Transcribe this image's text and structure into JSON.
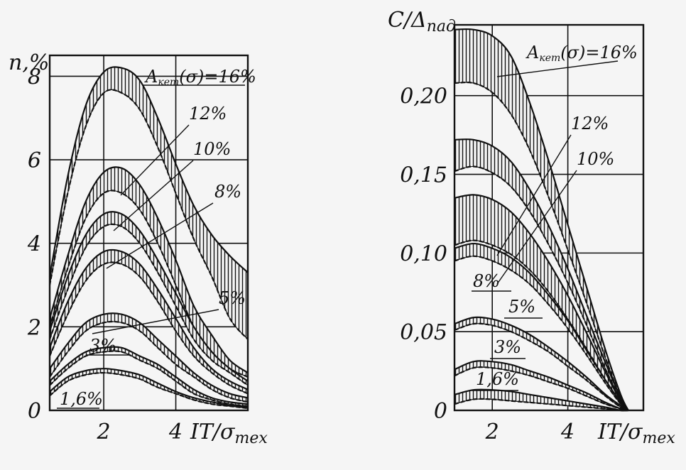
{
  "chart_data": [
    {
      "type": "area",
      "title": "",
      "ylabel": "n,%",
      "xlabel": "IT/σ_тех",
      "xlabel_main": "IT/σ",
      "xlabel_sub": "тех",
      "xlim": [
        0.5,
        6
      ],
      "ylim": [
        0,
        8.5
      ],
      "x_ticks": [
        2,
        4
      ],
      "y_ticks": [
        0,
        2,
        4,
        6,
        8
      ],
      "x_tick_labels": [
        "2",
        "4"
      ],
      "y_tick_labels": [
        "0",
        "2",
        "4",
        "6",
        "8"
      ],
      "grid": true,
      "legend_title_main": "A",
      "legend_title_sub": "кет",
      "legend_title_rest": "(σ)=16%",
      "series": [
        {
          "name": "16%",
          "x": [
            0.5,
            1,
            1.5,
            2,
            2.5,
            3,
            3.5,
            4,
            4.5,
            5,
            5.5,
            6
          ],
          "upper": [
            3.2,
            5.6,
            7.3,
            8.1,
            8.2,
            7.9,
            7.0,
            5.9,
            4.9,
            4.2,
            3.7,
            3.3
          ],
          "lower": [
            3.0,
            5.2,
            6.8,
            7.6,
            7.6,
            7.2,
            6.3,
            5.2,
            4.1,
            3.2,
            2.2,
            1.7
          ]
        },
        {
          "name": "12%",
          "x": [
            0.5,
            1,
            1.5,
            2,
            2.5,
            3,
            3.5,
            4,
            4.5,
            5,
            5.5,
            6
          ],
          "upper": [
            2.2,
            3.7,
            5.0,
            5.7,
            5.8,
            5.4,
            4.6,
            3.6,
            2.5,
            1.8,
            1.2,
            0.9
          ],
          "lower": [
            2.0,
            3.4,
            4.6,
            5.2,
            5.2,
            4.8,
            4.0,
            3.0,
            2.0,
            1.4,
            1.0,
            0.8
          ]
        },
        {
          "name": "10%",
          "x": [
            0.5,
            1,
            1.5,
            2,
            2.5,
            3,
            3.5,
            4,
            4.5,
            5,
            5.5,
            6
          ],
          "upper": [
            1.9,
            3.2,
            4.2,
            4.7,
            4.7,
            4.3,
            3.6,
            2.8,
            2.0,
            1.4,
            1.0,
            0.7
          ],
          "lower": [
            1.7,
            2.9,
            3.9,
            4.4,
            4.4,
            4.0,
            3.3,
            2.5,
            1.7,
            1.2,
            0.9,
            0.6
          ]
        },
        {
          "name": "8%",
          "x": [
            0.5,
            1,
            1.5,
            2,
            2.5,
            3,
            3.5,
            4,
            4.5,
            5,
            5.5,
            6
          ],
          "upper": [
            1.5,
            2.6,
            3.4,
            3.8,
            3.8,
            3.5,
            2.9,
            2.2,
            1.5,
            1.0,
            0.7,
            0.5
          ],
          "lower": [
            1.3,
            2.3,
            3.1,
            3.5,
            3.5,
            3.2,
            2.6,
            1.9,
            1.3,
            0.9,
            0.6,
            0.4
          ]
        },
        {
          "name": "5%",
          "x": [
            0.5,
            1,
            1.5,
            2,
            2.5,
            3,
            3.5,
            4,
            4.5,
            5,
            5.5,
            6
          ],
          "upper": [
            1.0,
            1.6,
            2.1,
            2.3,
            2.3,
            2.1,
            1.7,
            1.3,
            0.9,
            0.6,
            0.4,
            0.3
          ],
          "lower": [
            0.8,
            1.4,
            1.9,
            2.1,
            2.1,
            1.9,
            1.5,
            1.1,
            0.8,
            0.5,
            0.3,
            0.2
          ]
        },
        {
          "name": "3%",
          "x": [
            0.5,
            1,
            1.5,
            2,
            2.5,
            3,
            3.5,
            4,
            4.5,
            5,
            5.5,
            6
          ],
          "upper": [
            0.7,
            1.1,
            1.4,
            1.5,
            1.5,
            1.3,
            1.1,
            0.8,
            0.5,
            0.3,
            0.2,
            0.15
          ],
          "lower": [
            0.6,
            1.0,
            1.3,
            1.4,
            1.4,
            1.2,
            1.0,
            0.7,
            0.4,
            0.25,
            0.15,
            0.1
          ]
        },
        {
          "name": "1,6%",
          "x": [
            0.5,
            1,
            1.5,
            2,
            2.5,
            3,
            3.5,
            4,
            4.5,
            5,
            5.5,
            6
          ],
          "upper": [
            0.45,
            0.8,
            0.95,
            1.0,
            0.95,
            0.85,
            0.65,
            0.45,
            0.3,
            0.2,
            0.12,
            0.08
          ],
          "lower": [
            0.35,
            0.7,
            0.85,
            0.9,
            0.85,
            0.75,
            0.55,
            0.4,
            0.25,
            0.15,
            0.1,
            0.05
          ]
        }
      ]
    },
    {
      "type": "area",
      "title": "",
      "ylabel": "C/Δ_пад",
      "ylabel_main": "C/Δ",
      "ylabel_sub": "пад",
      "xlabel": "IT/σ_тех",
      "xlabel_main": "IT/σ",
      "xlabel_sub": "тех",
      "xlim": [
        1,
        6
      ],
      "ylim": [
        0,
        0.245
      ],
      "x_ticks": [
        2,
        4
      ],
      "y_ticks": [
        0,
        0.05,
        0.1,
        0.15,
        0.2
      ],
      "x_tick_labels": [
        "2",
        "4"
      ],
      "y_tick_labels": [
        "0",
        "0,05",
        "0,10",
        "0,15",
        "0,20"
      ],
      "grid": true,
      "legend_title_main": "A",
      "legend_title_sub": "кет",
      "legend_title_rest": "(σ)=16%",
      "series": [
        {
          "name": "16%",
          "x": [
            1,
            1.5,
            2,
            2.5,
            3,
            3.5,
            4,
            4.5,
            5,
            5.4,
            5.6
          ],
          "upper": [
            0.242,
            0.242,
            0.238,
            0.225,
            0.195,
            0.158,
            0.118,
            0.078,
            0.038,
            0.01,
            0.0
          ],
          "lower": [
            0.208,
            0.208,
            0.202,
            0.188,
            0.165,
            0.135,
            0.102,
            0.068,
            0.033,
            0.008,
            0.0
          ]
        },
        {
          "name": "12%",
          "x": [
            1,
            1.5,
            2,
            2.5,
            3,
            3.5,
            4,
            4.5,
            5,
            5.4,
            5.6
          ],
          "upper": [
            0.172,
            0.172,
            0.168,
            0.158,
            0.14,
            0.117,
            0.09,
            0.06,
            0.03,
            0.008,
            0.0
          ],
          "lower": [
            0.152,
            0.155,
            0.151,
            0.142,
            0.126,
            0.105,
            0.081,
            0.054,
            0.026,
            0.007,
            0.0
          ]
        },
        {
          "name": "10%",
          "x": [
            1,
            1.5,
            2,
            2.5,
            3,
            3.5,
            4,
            4.5,
            5,
            5.4,
            5.6
          ],
          "upper": [
            0.135,
            0.137,
            0.134,
            0.126,
            0.112,
            0.094,
            0.073,
            0.049,
            0.024,
            0.006,
            0.0
          ],
          "lower": [
            0.105,
            0.108,
            0.105,
            0.099,
            0.089,
            0.075,
            0.058,
            0.039,
            0.019,
            0.005,
            0.0
          ]
        },
        {
          "name": "8%",
          "x": [
            1,
            1.5,
            2,
            2.5,
            3,
            3.5,
            4,
            4.5,
            5,
            5.4,
            5.6
          ],
          "upper": [
            0.103,
            0.106,
            0.103,
            0.097,
            0.087,
            0.073,
            0.057,
            0.038,
            0.019,
            0.005,
            0.0
          ],
          "lower": [
            0.095,
            0.098,
            0.095,
            0.089,
            0.08,
            0.067,
            0.052,
            0.035,
            0.017,
            0.004,
            0.0
          ]
        },
        {
          "name": "5%",
          "x": [
            1,
            1.5,
            2,
            2.5,
            3,
            3.5,
            4,
            4.5,
            5,
            5.4,
            5.6
          ],
          "upper": [
            0.055,
            0.059,
            0.058,
            0.054,
            0.048,
            0.04,
            0.031,
            0.021,
            0.01,
            0.003,
            0.0
          ],
          "lower": [
            0.051,
            0.055,
            0.054,
            0.05,
            0.044,
            0.037,
            0.028,
            0.019,
            0.009,
            0.002,
            0.0
          ]
        },
        {
          "name": "3%",
          "x": [
            1,
            1.5,
            2,
            2.5,
            3,
            3.5,
            4,
            4.5,
            5,
            5.4,
            5.6
          ],
          "upper": [
            0.026,
            0.031,
            0.031,
            0.029,
            0.025,
            0.021,
            0.016,
            0.011,
            0.005,
            0.001,
            0.0
          ],
          "lower": [
            0.022,
            0.027,
            0.027,
            0.025,
            0.022,
            0.018,
            0.014,
            0.009,
            0.004,
            0.001,
            0.0
          ]
        },
        {
          "name": "1,6%",
          "x": [
            1,
            1.5,
            2,
            2.5,
            3,
            3.5,
            4,
            4.5,
            5,
            5.4,
            5.6
          ],
          "upper": [
            0.01,
            0.013,
            0.013,
            0.012,
            0.01,
            0.008,
            0.006,
            0.004,
            0.002,
            0.0,
            0.0
          ],
          "lower": [
            0.004,
            0.007,
            0.007,
            0.006,
            0.005,
            0.004,
            0.003,
            0.002,
            0.001,
            0.0,
            0.0
          ]
        }
      ]
    }
  ]
}
